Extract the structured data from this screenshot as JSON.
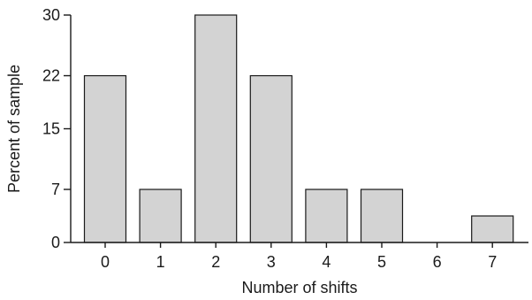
{
  "chart_data": {
    "type": "bar",
    "title": "",
    "xlabel": "Number of shifts",
    "ylabel": "Percent of sample",
    "categories": [
      "0",
      "1",
      "2",
      "3",
      "4",
      "5",
      "6",
      "7"
    ],
    "values": [
      22,
      7,
      30,
      22,
      7,
      7,
      0,
      3.5
    ],
    "ylim": [
      0,
      30
    ],
    "yticks": [
      0,
      7,
      15,
      22,
      30
    ],
    "grid": false,
    "bar_color": "#d3d3d3",
    "bar_edge_color": "#1a1a1a"
  }
}
